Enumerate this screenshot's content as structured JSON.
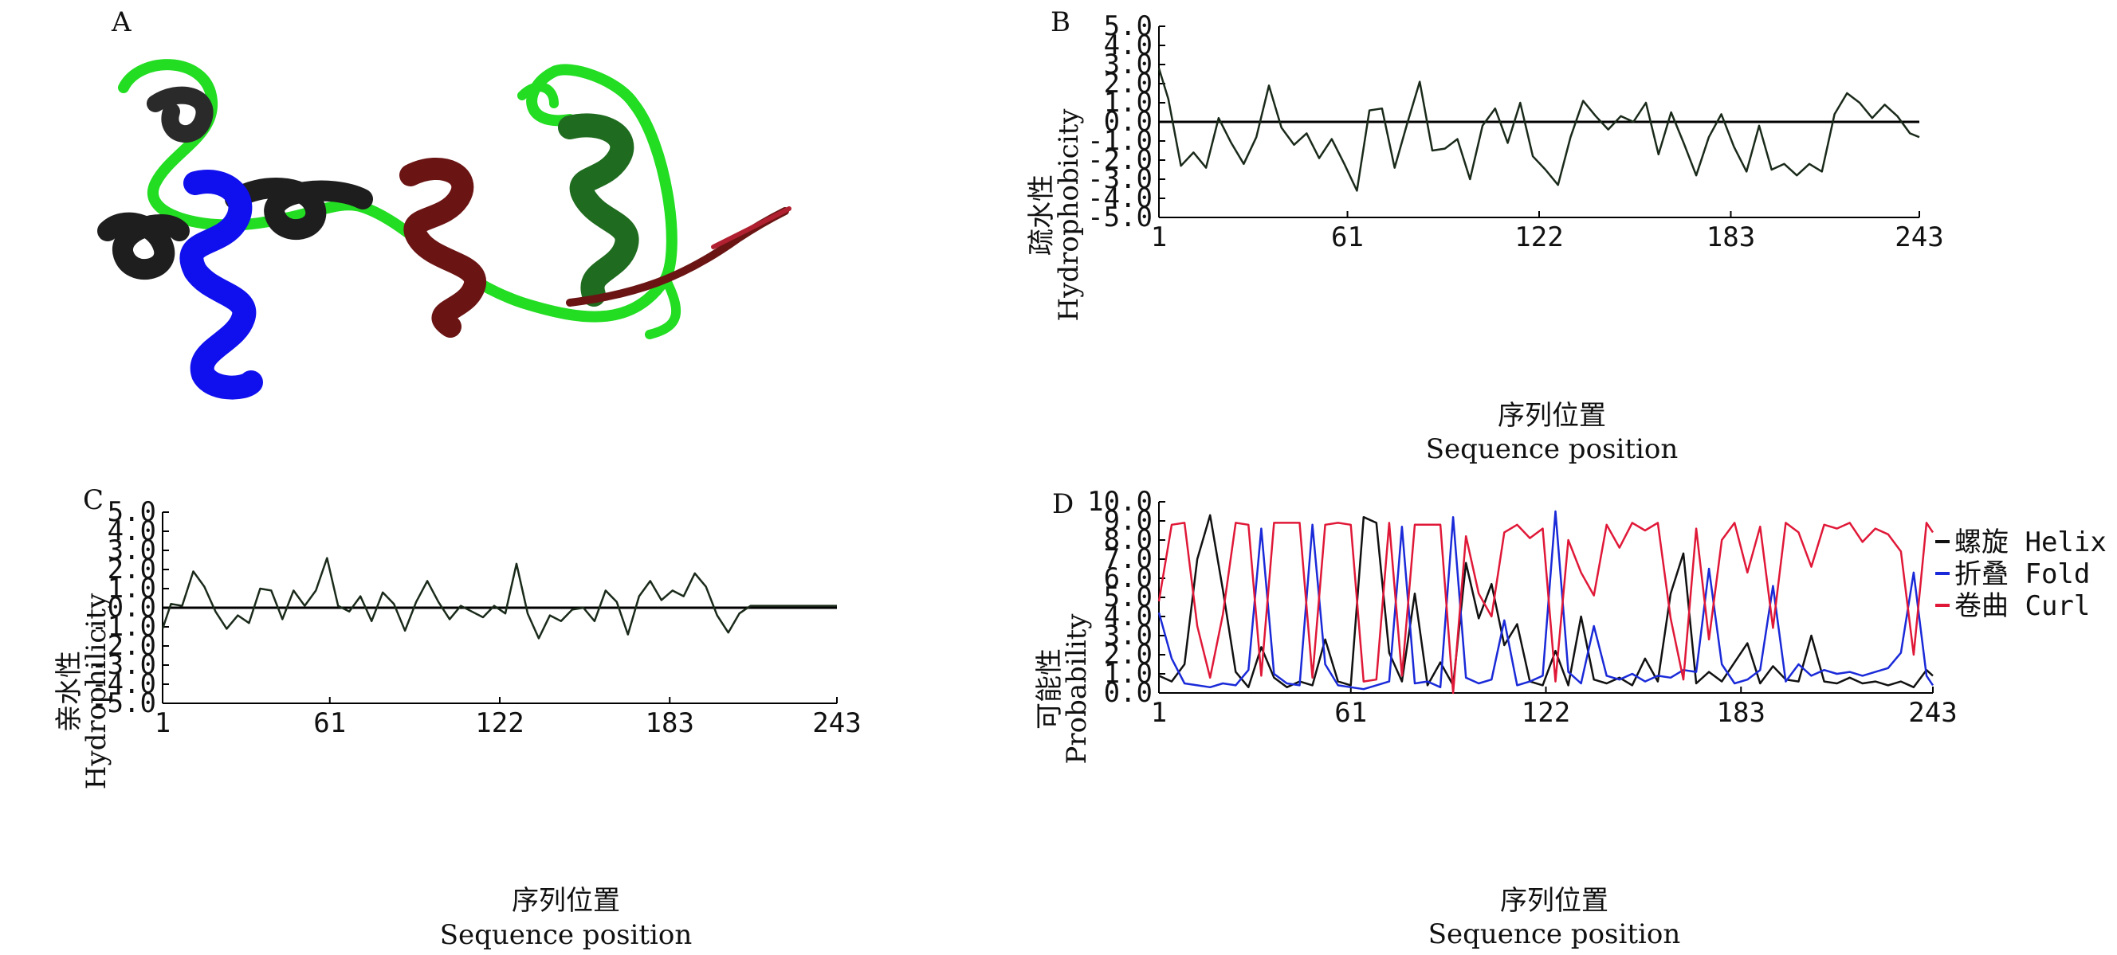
{
  "panels": {
    "A": "A",
    "B": "B",
    "C": "C",
    "D": "D"
  },
  "structure": {
    "icon": "protein-ribbon-icon",
    "colors": [
      "#1e1e1e",
      "#22dd22",
      "#1010ee",
      "#6b1414"
    ]
  },
  "colors": {
    "trace": "#1a2a1a",
    "zero_line": "#000000",
    "helix": "#111111",
    "fold": "#1a2ad8",
    "curl": "#e01838"
  },
  "chart_data": [
    {
      "id": "B",
      "type": "line",
      "ylabel_cn": "疏水性",
      "ylabel_en": "Hydrophobicity",
      "xlabel_cn": "序列位置",
      "xlabel_en": "Sequence position",
      "xlim": [
        1,
        243
      ],
      "ylim": [
        -5,
        5
      ],
      "x_ticks": [
        "1",
        "61",
        "122",
        "183",
        "243"
      ],
      "y_ticks": [
        "5.0",
        "4.0",
        "3.0",
        "2.0",
        "1.0",
        "0.0",
        "-1.0",
        "-2.0",
        "-3.0",
        "-4.0",
        "-5.0"
      ],
      "reference_line": 0,
      "series": [
        {
          "x": [
            1,
            4,
            8,
            12,
            16,
            20,
            24,
            28,
            32,
            36,
            40,
            44,
            48,
            52,
            56,
            60,
            64,
            68,
            72,
            76,
            80,
            84,
            88,
            92,
            96,
            100,
            104,
            108,
            112,
            116,
            120,
            124,
            128,
            132,
            136,
            140,
            144,
            148,
            152,
            156,
            160,
            164,
            168,
            172,
            176,
            180,
            184,
            188,
            192,
            196,
            200,
            204,
            208,
            212,
            216,
            220,
            224,
            228,
            232,
            236,
            240,
            243
          ],
          "values": [
            2.8,
            1.2,
            -2.3,
            -1.6,
            -2.4,
            0.2,
            -1.1,
            -2.2,
            -0.8,
            1.9,
            -0.3,
            -1.2,
            -0.6,
            -1.9,
            -0.9,
            -2.2,
            -3.6,
            0.6,
            0.7,
            -2.4,
            -0.1,
            2.1,
            -1.5,
            -1.4,
            -0.9,
            -3.0,
            -0.2,
            0.7,
            -1.1,
            1.0,
            -1.8,
            -2.5,
            -3.3,
            -0.8,
            1.1,
            0.3,
            -0.4,
            0.3,
            0.0,
            1.0,
            -1.7,
            0.5,
            -1.1,
            -2.8,
            -0.8,
            0.4,
            -1.3,
            -2.6,
            -0.2,
            -2.5,
            -2.2,
            -2.8,
            -2.2,
            -2.6,
            0.4,
            1.5,
            1.0,
            0.2,
            0.9,
            0.3,
            -0.6,
            -0.8
          ]
        }
      ]
    },
    {
      "id": "C",
      "type": "line",
      "ylabel_cn": "亲水性",
      "ylabel_en": "Hydrophilicity",
      "xlabel_cn": "序列位置",
      "xlabel_en": "Sequence position",
      "xlim": [
        1,
        243
      ],
      "ylim": [
        -5,
        5
      ],
      "x_ticks": [
        "1",
        "61",
        "122",
        "183",
        "243"
      ],
      "y_ticks": [
        "5.0",
        "4.0",
        "3.0",
        "2.0",
        "1.0",
        "0.0",
        "-1.0",
        "-2.0",
        "-3.0",
        "-4.0",
        "-5.0"
      ],
      "reference_line": 0,
      "series": [
        {
          "x": [
            1,
            4,
            8,
            12,
            16,
            20,
            24,
            28,
            32,
            36,
            40,
            44,
            48,
            52,
            56,
            60,
            64,
            68,
            72,
            76,
            80,
            84,
            88,
            92,
            96,
            100,
            104,
            108,
            112,
            116,
            120,
            124,
            128,
            132,
            136,
            140,
            144,
            148,
            152,
            156,
            160,
            164,
            168,
            172,
            176,
            180,
            184,
            188,
            192,
            196,
            200,
            204,
            208,
            212,
            216,
            220,
            224,
            228,
            232,
            236,
            240,
            243
          ],
          "values": [
            -1.1,
            0.2,
            0.1,
            1.9,
            1.1,
            -0.2,
            -1.1,
            -0.4,
            -0.8,
            1.0,
            0.9,
            -0.6,
            0.9,
            0.1,
            0.9,
            2.6,
            0.1,
            -0.2,
            0.6,
            -0.7,
            0.8,
            0.2,
            -1.2,
            0.3,
            1.4,
            0.3,
            -0.6,
            0.1,
            -0.2,
            -0.5,
            0.1,
            -0.3,
            2.3,
            -0.3,
            -1.6,
            -0.4,
            -0.7,
            -0.1,
            0.0,
            -0.7,
            0.9,
            0.3,
            -1.4,
            0.6,
            1.4,
            0.4,
            0.9,
            0.6,
            1.8,
            1.1,
            -0.4,
            -1.3,
            -0.3,
            0.1,
            0.1,
            0.1,
            0.1,
            0.1,
            0.1,
            0.1,
            0.1,
            0.1
          ]
        }
      ]
    },
    {
      "id": "D",
      "type": "line",
      "ylabel_cn": "可能性",
      "ylabel_en": "Probability",
      "xlabel_cn": "序列位置",
      "xlabel_en": "Sequence position",
      "xlim": [
        1,
        243
      ],
      "ylim": [
        0,
        10
      ],
      "x_ticks": [
        "1",
        "61",
        "122",
        "183",
        "243"
      ],
      "y_ticks": [
        "10.0",
        "9.0",
        "8.0",
        "7.0",
        "6.0",
        "5.0",
        "4.0",
        "3.0",
        "2.0",
        "1.0",
        "0.0"
      ],
      "legend": {
        "placement": "top-right",
        "entries": [
          "螺旋 Helix",
          "折叠 Fold",
          "卷曲 Curl"
        ]
      },
      "series": [
        {
          "name": "螺旋 Helix",
          "x": [
            1,
            5,
            9,
            13,
            17,
            21,
            25,
            29,
            33,
            37,
            41,
            45,
            49,
            53,
            57,
            61,
            65,
            69,
            73,
            77,
            81,
            85,
            89,
            93,
            97,
            101,
            105,
            109,
            113,
            117,
            121,
            125,
            129,
            133,
            137,
            141,
            145,
            149,
            153,
            157,
            161,
            165,
            169,
            173,
            177,
            181,
            185,
            189,
            193,
            197,
            201,
            205,
            209,
            213,
            217,
            221,
            225,
            229,
            233,
            237,
            241,
            243
          ],
          "values": [
            0.9,
            0.6,
            1.5,
            7.0,
            9.3,
            5.4,
            1.1,
            0.3,
            2.4,
            0.8,
            0.3,
            0.6,
            0.4,
            2.8,
            0.6,
            0.4,
            9.2,
            8.9,
            2.1,
            0.6,
            5.2,
            0.4,
            1.6,
            0.4,
            6.8,
            3.9,
            5.7,
            2.5,
            3.6,
            0.6,
            0.4,
            2.2,
            0.4,
            4.0,
            0.7,
            0.5,
            0.8,
            0.4,
            1.8,
            0.6,
            5.2,
            7.3,
            0.5,
            1.1,
            0.6,
            1.6,
            2.6,
            0.5,
            1.4,
            0.7,
            0.6,
            3.0,
            0.6,
            0.5,
            0.8,
            0.5,
            0.6,
            0.4,
            0.6,
            0.3,
            1.2,
            0.9
          ]
        },
        {
          "name": "折叠 Fold",
          "x": [
            1,
            5,
            9,
            13,
            17,
            21,
            25,
            29,
            33,
            37,
            41,
            45,
            49,
            53,
            57,
            61,
            65,
            69,
            73,
            77,
            81,
            85,
            89,
            93,
            97,
            101,
            105,
            109,
            113,
            117,
            121,
            125,
            129,
            133,
            137,
            141,
            145,
            149,
            153,
            157,
            161,
            165,
            169,
            173,
            177,
            181,
            185,
            189,
            193,
            197,
            201,
            205,
            209,
            213,
            217,
            221,
            225,
            229,
            233,
            237,
            241,
            243
          ],
          "values": [
            4.2,
            1.8,
            0.5,
            0.4,
            0.3,
            0.5,
            0.4,
            1.2,
            8.6,
            1.0,
            0.5,
            0.4,
            8.8,
            1.5,
            0.4,
            0.3,
            0.2,
            0.4,
            0.6,
            8.7,
            0.5,
            0.6,
            0.3,
            9.2,
            0.8,
            0.5,
            0.7,
            3.8,
            0.4,
            0.6,
            0.9,
            9.5,
            1.1,
            0.5,
            3.5,
            0.9,
            0.7,
            1.0,
            0.6,
            0.9,
            0.8,
            1.2,
            1.1,
            6.5,
            1.5,
            0.5,
            0.7,
            1.2,
            5.6,
            0.6,
            1.5,
            0.9,
            1.2,
            1.0,
            1.1,
            0.9,
            1.1,
            1.3,
            2.1,
            6.3,
            0.9,
            0.4
          ]
        },
        {
          "name": "卷曲 Curl",
          "x": [
            1,
            5,
            9,
            13,
            17,
            21,
            25,
            29,
            33,
            37,
            41,
            45,
            49,
            53,
            57,
            61,
            65,
            69,
            73,
            77,
            81,
            85,
            89,
            93,
            97,
            101,
            105,
            109,
            113,
            117,
            121,
            125,
            129,
            133,
            137,
            141,
            145,
            149,
            153,
            157,
            161,
            165,
            169,
            173,
            177,
            181,
            185,
            189,
            193,
            197,
            201,
            205,
            209,
            213,
            217,
            221,
            225,
            229,
            233,
            237,
            241,
            243
          ],
          "values": [
            4.8,
            8.8,
            8.9,
            3.5,
            0.8,
            4.1,
            8.9,
            8.8,
            0.9,
            8.9,
            8.9,
            8.9,
            0.8,
            8.8,
            8.9,
            8.8,
            0.6,
            0.7,
            8.9,
            0.9,
            8.8,
            8.8,
            8.8,
            0.0,
            8.2,
            5.2,
            4.0,
            8.4,
            8.8,
            8.1,
            8.6,
            0.6,
            8.0,
            6.3,
            5.1,
            8.8,
            7.6,
            8.9,
            8.5,
            8.9,
            3.9,
            0.7,
            8.6,
            2.8,
            8.0,
            8.9,
            6.3,
            8.7,
            3.4,
            8.9,
            8.4,
            6.6,
            8.8,
            8.6,
            8.9,
            7.9,
            8.6,
            8.3,
            7.4,
            2.0,
            8.9,
            8.4
          ]
        }
      ]
    }
  ]
}
